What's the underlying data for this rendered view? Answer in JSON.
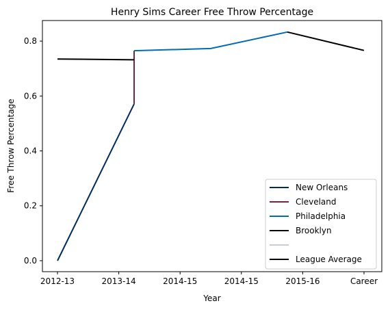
{
  "chart_data": {
    "type": "line",
    "title": "Henry Sims Career Free Throw Percentage",
    "xlabel": "Year",
    "ylabel": "Free Throw Percentage",
    "categories": [
      "2012-13",
      "2013-14",
      "2014-15",
      "2014-15",
      "2015-16",
      "Career"
    ],
    "ylim": [
      -0.04,
      0.875
    ],
    "yticks": [
      0.0,
      0.2,
      0.4,
      0.6,
      0.8
    ],
    "grid": false,
    "legend_position": "lower right",
    "series": [
      {
        "name": "New Orleans",
        "color": "#002B5C",
        "points": [
          [
            0,
            0.0
          ],
          [
            1.25,
            0.571
          ]
        ]
      },
      {
        "name": "Cleveland",
        "color": "#6F263D",
        "points": [
          [
            1.25,
            0.571
          ],
          [
            1.25,
            0.765
          ]
        ]
      },
      {
        "name": "Philadelphia",
        "color": "#006BB6",
        "points": [
          [
            1.25,
            0.765
          ],
          [
            2.5,
            0.773
          ],
          [
            3.75,
            0.833
          ]
        ]
      },
      {
        "name": "Brooklyn",
        "color": "#000000",
        "points": [
          [
            3.75,
            0.833
          ],
          [
            5,
            0.766
          ]
        ]
      },
      {
        "name": "",
        "color": "#C4CED4",
        "points": []
      },
      {
        "name": "League Average",
        "color": "#000000",
        "points": [
          [
            0,
            0.735
          ],
          [
            1.25,
            0.732
          ]
        ]
      }
    ]
  }
}
